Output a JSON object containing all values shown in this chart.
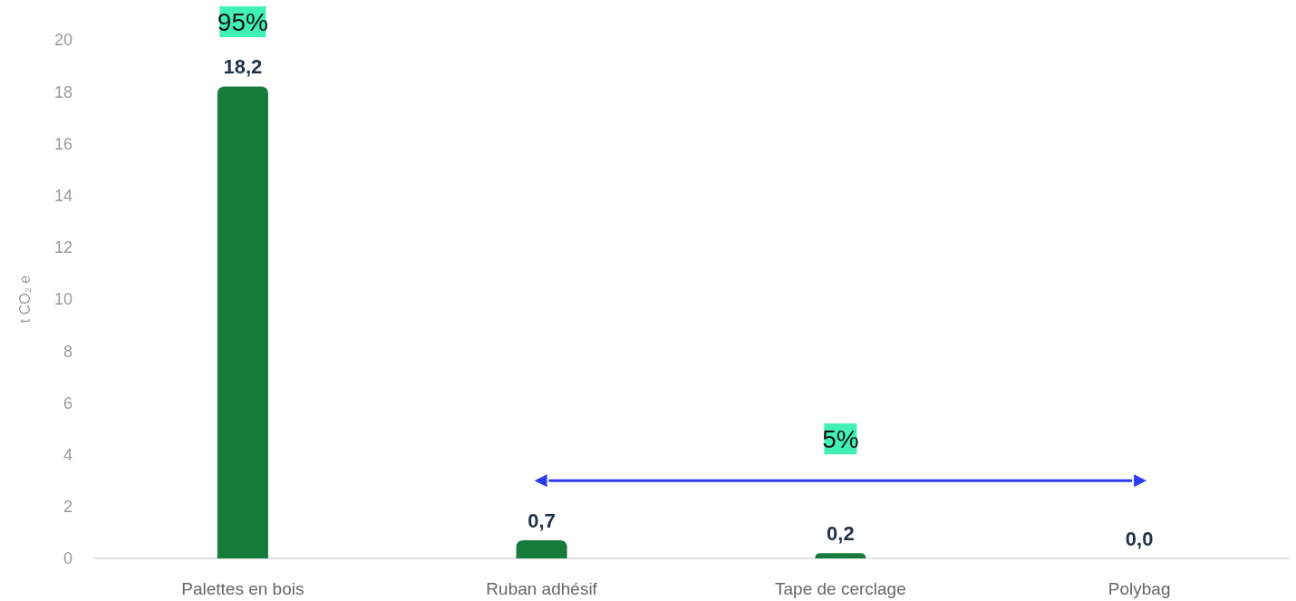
{
  "chart_data": {
    "type": "bar",
    "ylabel": "t CO₂ e",
    "categories": [
      "Palettes en bois",
      "Ruban adhésif",
      "Tape de cerclage",
      "Polybag"
    ],
    "values": [
      18.2,
      0.7,
      0.2,
      0.0
    ],
    "value_labels": [
      "18,2",
      "0,7",
      "0,2",
      "0,0"
    ],
    "color": "#177c3b",
    "ylim": [
      0,
      20
    ],
    "yticks": [
      0,
      2,
      4,
      6,
      8,
      10,
      12,
      14,
      16,
      18,
      20
    ],
    "grid": false,
    "annotations": [
      "95%",
      "5%"
    ]
  }
}
